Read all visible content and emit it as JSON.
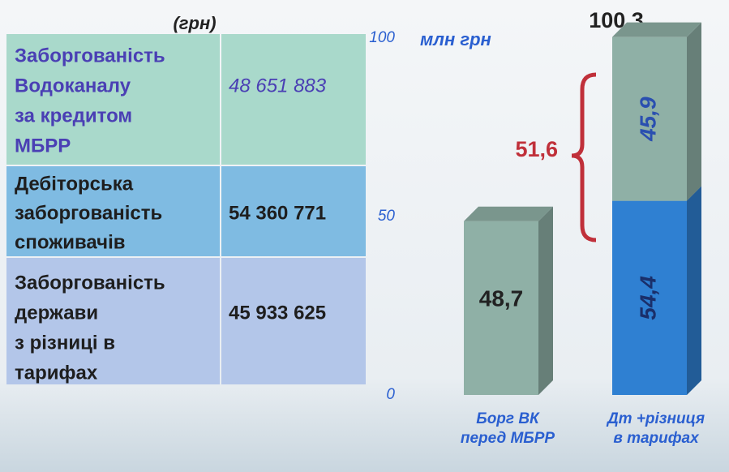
{
  "table": {
    "header": "(грн)",
    "rows": [
      {
        "label": [
          "Заборгованість",
          "Водоканалу",
          "за кредитом",
          "МБРР"
        ],
        "value": "48 651 883"
      },
      {
        "label": [
          "Дебіторська",
          "заборгованість",
          "споживачів"
        ],
        "value": "54 360 771"
      },
      {
        "label": [
          "Заборгованість",
          "держави",
          "з різниці в",
          "тарифах"
        ],
        "value": "45 933 625"
      }
    ]
  },
  "chart_data": {
    "type": "bar",
    "stacked": true,
    "unit_label": "млн грн",
    "categories": [
      [
        "Борг ВК",
        "перед МБРР"
      ],
      [
        "Дт +різниця",
        "в тарифах"
      ]
    ],
    "series": [
      {
        "colors": [
          "#8fb0a6",
          "#2f80d2"
        ],
        "values": [
          48.7,
          54.4
        ],
        "value_labels": [
          "48,7",
          "54,4"
        ]
      },
      {
        "color": "#8fb0a6",
        "values": [
          null,
          45.9
        ],
        "value_labels": [
          null,
          "45,9"
        ]
      }
    ],
    "ylim": [
      0,
      100
    ],
    "yticks": [
      0,
      50,
      100
    ],
    "annotations": [
      {
        "text": "100,3"
      },
      {
        "text": "51,6"
      }
    ]
  }
}
